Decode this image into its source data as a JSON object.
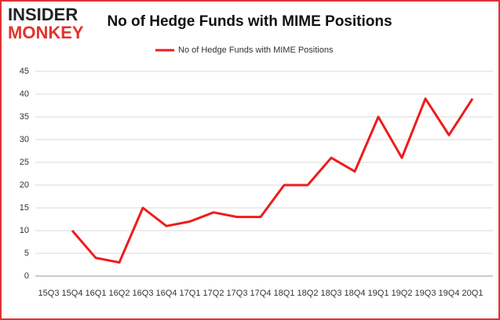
{
  "logo": {
    "top": "INSIDER",
    "bottom": "MONKEY"
  },
  "chart_data": {
    "type": "line",
    "title": "No of Hedge Funds with MIME Positions",
    "categories": [
      "15Q3",
      "15Q4",
      "16Q1",
      "16Q2",
      "16Q3",
      "16Q4",
      "17Q1",
      "17Q2",
      "17Q3",
      "17Q4",
      "18Q1",
      "18Q2",
      "18Q3",
      "18Q4",
      "19Q1",
      "19Q2",
      "19Q3",
      "19Q4",
      "20Q1"
    ],
    "series": [
      {
        "name": "No of Hedge Funds with MIME Positions",
        "color": "#ee1c1c",
        "values": [
          null,
          10,
          4,
          3,
          15,
          11,
          12,
          14,
          13,
          13,
          20,
          20,
          26,
          23,
          35,
          26,
          39,
          31,
          39
        ]
      }
    ],
    "ylim": [
      0,
      45
    ],
    "yticks": [
      0,
      5,
      10,
      15,
      20,
      25,
      30,
      35,
      40,
      45
    ],
    "grid": true,
    "legend": "top"
  }
}
